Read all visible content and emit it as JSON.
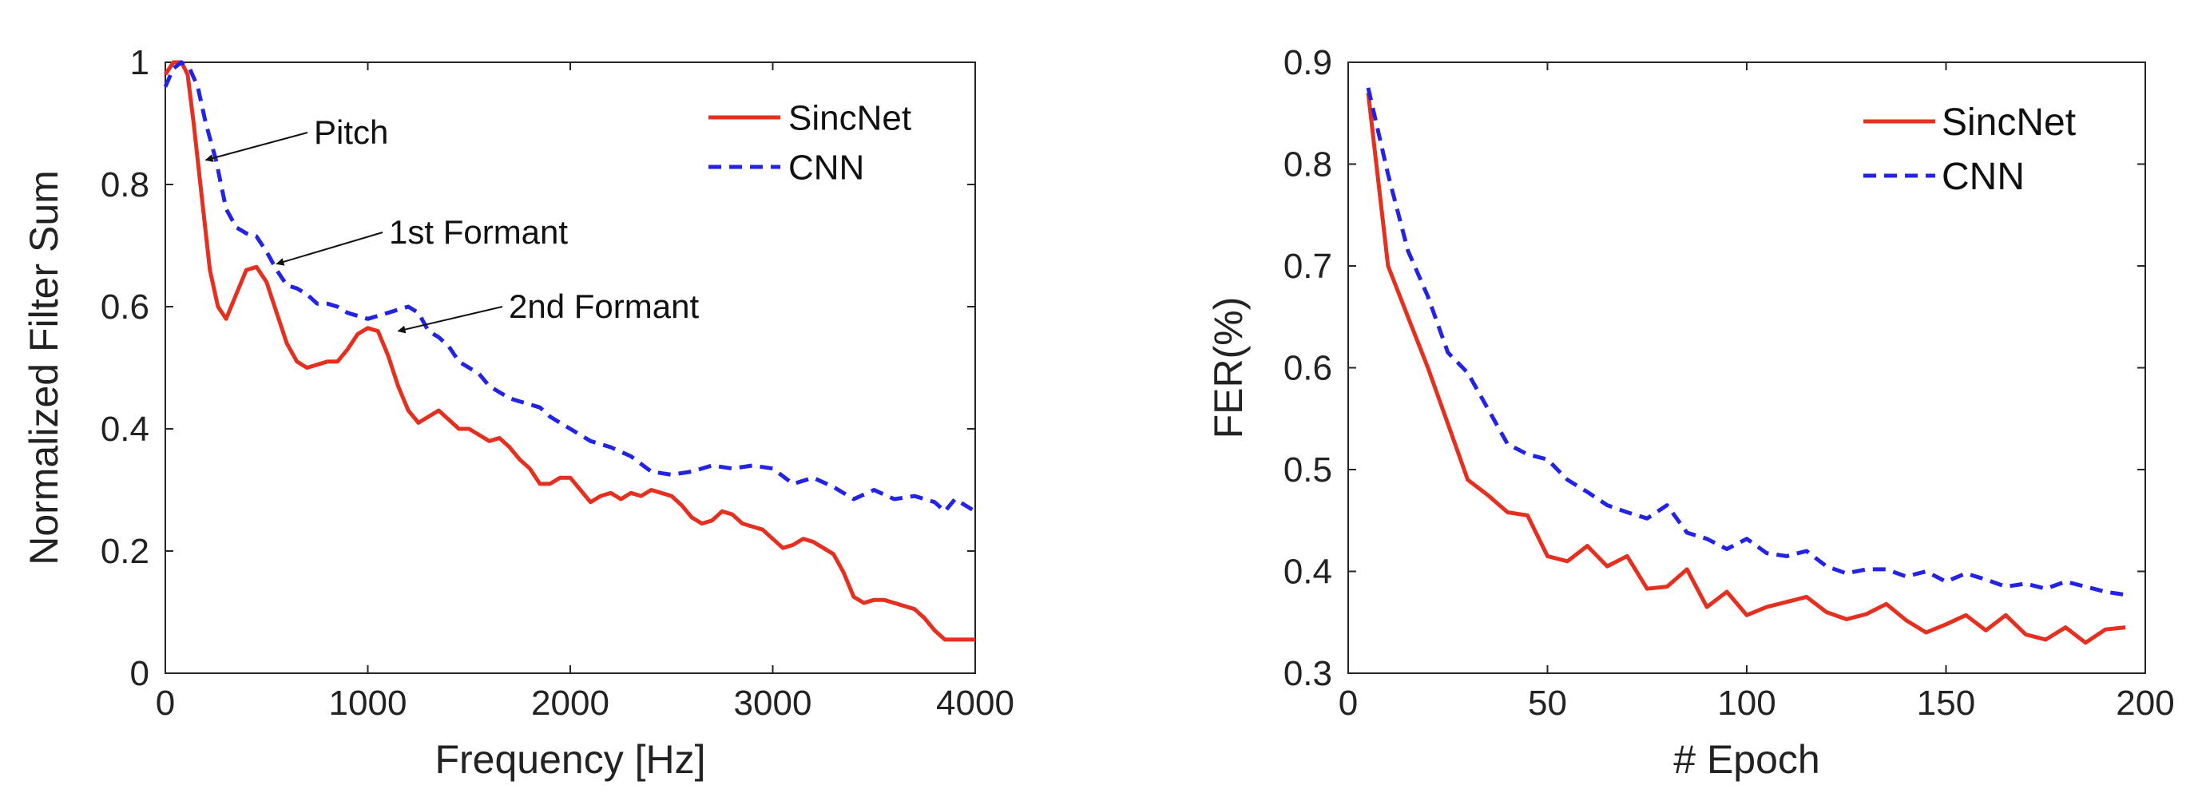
{
  "chart_data": [
    {
      "type": "line",
      "xlabel": "Frequency [Hz]",
      "ylabel": "Normalized Filter Sum",
      "xlim": [
        0,
        4000
      ],
      "ylim": [
        0,
        1
      ],
      "xticks": [
        "0",
        "1000",
        "2000",
        "3000",
        "4000"
      ],
      "yticks": [
        "0",
        "0.2",
        "0.4",
        "0.6",
        "0.8",
        "1"
      ],
      "grid": false,
      "legend_position": "top-right",
      "legend": [
        "SincNet",
        "CNN"
      ],
      "annotations": [
        {
          "text": "Pitch",
          "points_to": [
            200,
            0.84
          ]
        },
        {
          "text": "1st Formant",
          "points_to": [
            550,
            0.67
          ]
        },
        {
          "text": "2nd Formant",
          "points_to": [
            1150,
            0.56
          ]
        }
      ],
      "series": [
        {
          "name": "SincNet",
          "color": "#e52f1f",
          "dash": "solid",
          "x": [
            0,
            40,
            80,
            110,
            140,
            180,
            220,
            260,
            300,
            350,
            400,
            450,
            500,
            550,
            600,
            650,
            700,
            750,
            800,
            850,
            900,
            950,
            1000,
            1050,
            1100,
            1150,
            1200,
            1250,
            1300,
            1350,
            1400,
            1450,
            1500,
            1550,
            1600,
            1650,
            1700,
            1750,
            1800,
            1850,
            1900,
            1950,
            2000,
            2050,
            2100,
            2150,
            2200,
            2250,
            2300,
            2350,
            2400,
            2450,
            2500,
            2550,
            2600,
            2650,
            2700,
            2750,
            2800,
            2850,
            2900,
            2950,
            3000,
            3050,
            3100,
            3150,
            3200,
            3250,
            3300,
            3350,
            3400,
            3450,
            3500,
            3550,
            3600,
            3650,
            3700,
            3750,
            3800,
            3850,
            3900,
            3950,
            4000
          ],
          "y": [
            0.98,
            1.0,
            1.0,
            0.98,
            0.9,
            0.78,
            0.66,
            0.6,
            0.58,
            0.62,
            0.66,
            0.665,
            0.64,
            0.59,
            0.54,
            0.51,
            0.5,
            0.505,
            0.51,
            0.51,
            0.53,
            0.555,
            0.565,
            0.56,
            0.52,
            0.47,
            0.43,
            0.41,
            0.42,
            0.43,
            0.415,
            0.4,
            0.4,
            0.39,
            0.38,
            0.385,
            0.37,
            0.35,
            0.335,
            0.31,
            0.31,
            0.32,
            0.32,
            0.3,
            0.28,
            0.29,
            0.295,
            0.285,
            0.295,
            0.29,
            0.3,
            0.295,
            0.29,
            0.275,
            0.255,
            0.245,
            0.25,
            0.265,
            0.26,
            0.245,
            0.24,
            0.235,
            0.22,
            0.205,
            0.21,
            0.22,
            0.215,
            0.205,
            0.195,
            0.165,
            0.125,
            0.115,
            0.12,
            0.12,
            0.115,
            0.11,
            0.105,
            0.09,
            0.07,
            0.055,
            0.055,
            0.055,
            0.055
          ]
        },
        {
          "name": "CNN",
          "color": "#2323e6",
          "dash": "dashed",
          "x": [
            0,
            40,
            80,
            120,
            160,
            200,
            250,
            300,
            350,
            400,
            450,
            500,
            550,
            600,
            650,
            700,
            750,
            800,
            850,
            900,
            950,
            1000,
            1050,
            1100,
            1150,
            1200,
            1250,
            1300,
            1350,
            1400,
            1450,
            1500,
            1550,
            1600,
            1650,
            1700,
            1750,
            1800,
            1850,
            1900,
            1950,
            2000,
            2100,
            2200,
            2300,
            2400,
            2500,
            2600,
            2700,
            2800,
            2900,
            3000,
            3100,
            3200,
            3300,
            3400,
            3500,
            3600,
            3700,
            3800,
            3850,
            3900,
            3950,
            4000
          ],
          "y": [
            0.96,
            0.99,
            1.0,
            0.99,
            0.96,
            0.9,
            0.84,
            0.76,
            0.73,
            0.72,
            0.715,
            0.69,
            0.66,
            0.635,
            0.63,
            0.62,
            0.605,
            0.605,
            0.6,
            0.59,
            0.585,
            0.58,
            0.585,
            0.59,
            0.595,
            0.6,
            0.59,
            0.56,
            0.55,
            0.535,
            0.51,
            0.5,
            0.49,
            0.47,
            0.46,
            0.45,
            0.445,
            0.44,
            0.435,
            0.42,
            0.41,
            0.4,
            0.38,
            0.37,
            0.355,
            0.33,
            0.325,
            0.33,
            0.34,
            0.335,
            0.34,
            0.335,
            0.31,
            0.32,
            0.305,
            0.285,
            0.3,
            0.285,
            0.29,
            0.28,
            0.265,
            0.285,
            0.275,
            0.265
          ]
        }
      ]
    },
    {
      "type": "line",
      "xlabel": "# Epoch",
      "ylabel": "FER(%)",
      "xlim": [
        0,
        200
      ],
      "ylim": [
        0.3,
        0.9
      ],
      "xticks": [
        "0",
        "50",
        "100",
        "150",
        "200"
      ],
      "yticks": [
        "0.3",
        "0.4",
        "0.5",
        "0.6",
        "0.7",
        "0.8",
        "0.9"
      ],
      "grid": false,
      "legend_position": "top-right",
      "legend": [
        "SincNet",
        "CNN"
      ],
      "series": [
        {
          "name": "SincNet",
          "color": "#e52f1f",
          "dash": "solid",
          "x": [
            5,
            10,
            15,
            20,
            25,
            30,
            35,
            40,
            45,
            50,
            55,
            60,
            65,
            70,
            75,
            80,
            85,
            90,
            95,
            100,
            105,
            110,
            115,
            120,
            125,
            130,
            135,
            140,
            145,
            150,
            155,
            160,
            165,
            170,
            175,
            180,
            185,
            190,
            195
          ],
          "y": [
            0.87,
            0.7,
            0.65,
            0.6,
            0.545,
            0.49,
            0.475,
            0.458,
            0.455,
            0.415,
            0.41,
            0.425,
            0.405,
            0.415,
            0.383,
            0.385,
            0.402,
            0.365,
            0.38,
            0.357,
            0.365,
            0.37,
            0.375,
            0.36,
            0.353,
            0.358,
            0.368,
            0.352,
            0.34,
            0.348,
            0.357,
            0.342,
            0.357,
            0.338,
            0.333,
            0.345,
            0.33,
            0.343,
            0.345
          ]
        },
        {
          "name": "CNN",
          "color": "#2323e6",
          "dash": "dashed",
          "x": [
            5,
            10,
            15,
            20,
            25,
            30,
            35,
            40,
            45,
            50,
            55,
            60,
            65,
            70,
            75,
            80,
            85,
            90,
            95,
            100,
            105,
            110,
            115,
            120,
            125,
            130,
            135,
            140,
            145,
            150,
            155,
            160,
            165,
            170,
            175,
            180,
            185,
            190,
            195
          ],
          "y": [
            0.875,
            0.79,
            0.715,
            0.67,
            0.615,
            0.595,
            0.56,
            0.525,
            0.515,
            0.51,
            0.49,
            0.478,
            0.465,
            0.458,
            0.452,
            0.465,
            0.438,
            0.432,
            0.422,
            0.432,
            0.418,
            0.415,
            0.42,
            0.405,
            0.398,
            0.402,
            0.402,
            0.395,
            0.4,
            0.39,
            0.398,
            0.392,
            0.385,
            0.388,
            0.383,
            0.39,
            0.385,
            0.38,
            0.377
          ]
        }
      ]
    }
  ]
}
